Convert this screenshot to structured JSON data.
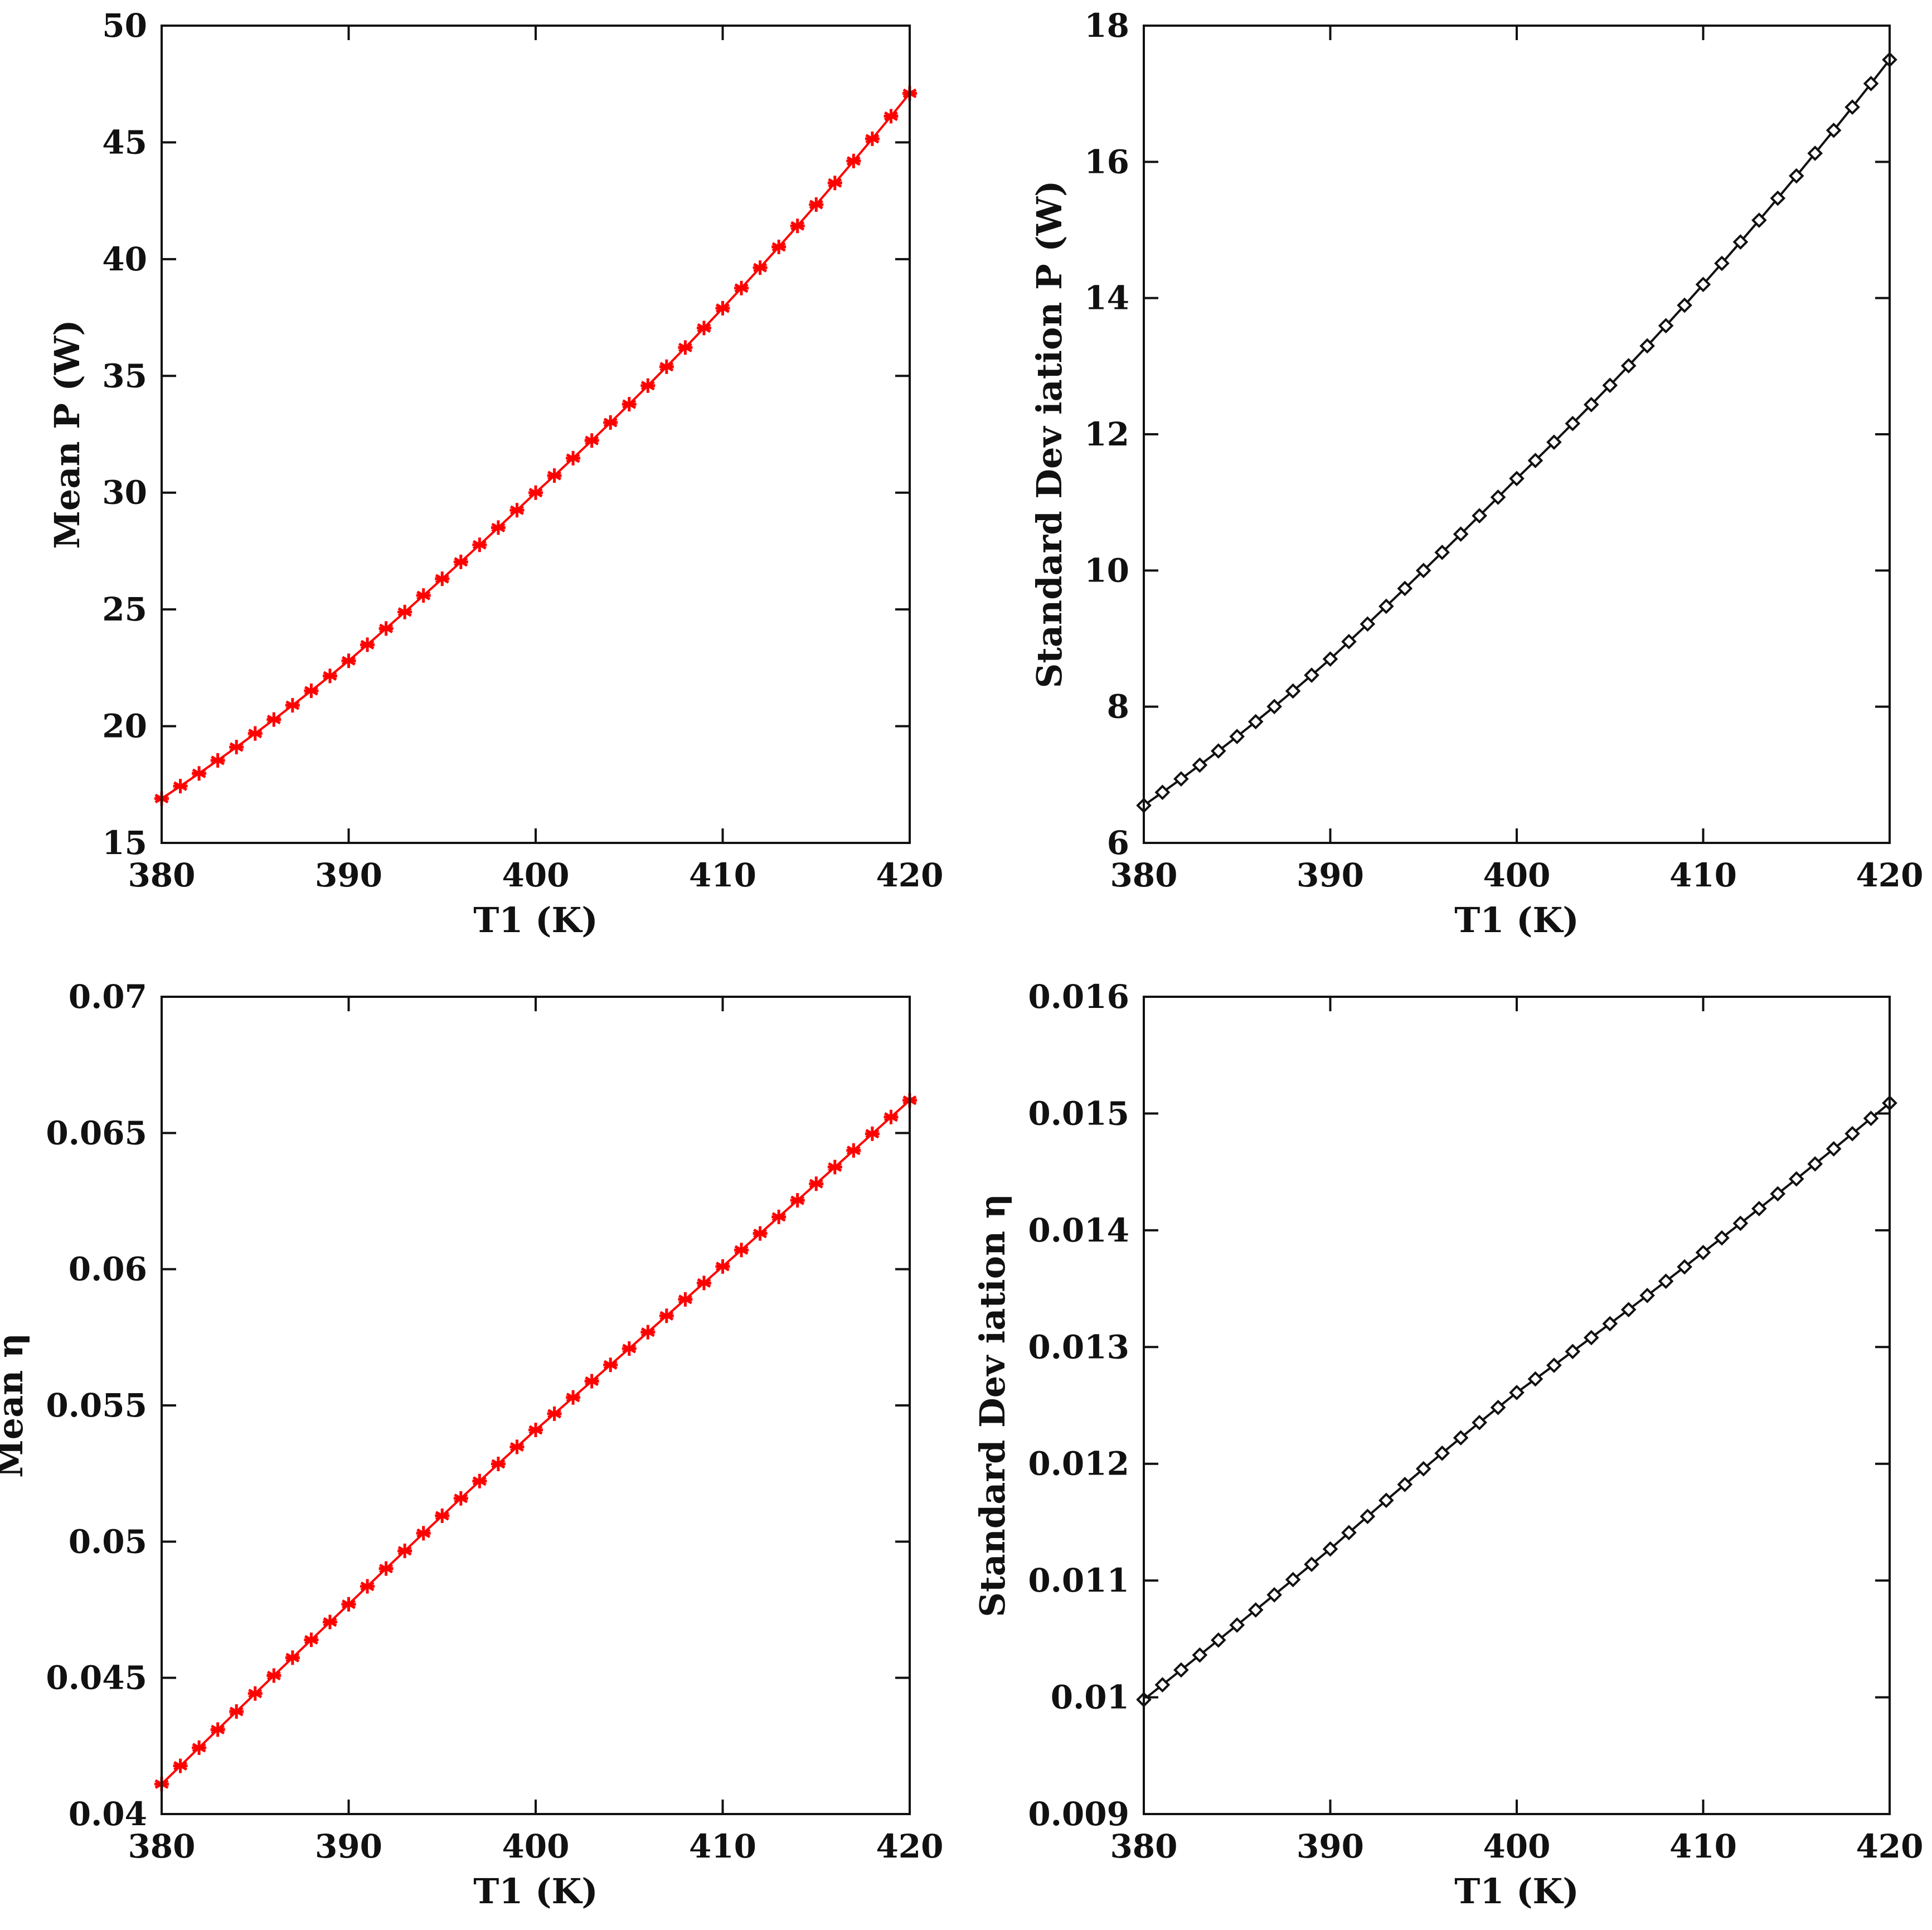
{
  "chart_data": [
    {
      "type": "line",
      "xlabel": "T1 (K)",
      "ylabel": "Mean P (W)",
      "xlim": [
        380,
        420
      ],
      "ylim": [
        15,
        50
      ],
      "xticks": [
        380,
        390,
        400,
        410,
        420
      ],
      "yticks": [
        15,
        20,
        25,
        30,
        35,
        40,
        45,
        50
      ],
      "marker": "asterisk",
      "color": "#ff0000",
      "grid": false,
      "n_points": 41,
      "anchors": [
        [
          380,
          16.9
        ],
        [
          390,
          22.8
        ],
        [
          400,
          30.0
        ],
        [
          410,
          37.9
        ],
        [
          420,
          47.1
        ]
      ]
    },
    {
      "type": "line",
      "xlabel": "T1 (K)",
      "ylabel": "Standard Dev iation P (W)",
      "xlim": [
        380,
        420
      ],
      "ylim": [
        6,
        18
      ],
      "xticks": [
        380,
        390,
        400,
        410,
        420
      ],
      "yticks": [
        6,
        8,
        10,
        12,
        14,
        16,
        18
      ],
      "marker": "diamond",
      "color": "#111111",
      "grid": false,
      "n_points": 41,
      "anchors": [
        [
          380,
          6.55
        ],
        [
          390,
          8.7
        ],
        [
          400,
          11.35
        ],
        [
          410,
          14.2
        ],
        [
          420,
          17.5
        ]
      ]
    },
    {
      "type": "line",
      "xlabel": "T1 (K)",
      "ylabel": "Mean η",
      "xlim": [
        380,
        420
      ],
      "ylim": [
        0.04,
        0.07
      ],
      "xticks": [
        380,
        390,
        400,
        410,
        420
      ],
      "yticks": [
        0.04,
        0.045,
        0.05,
        0.055,
        0.06,
        0.065,
        0.07
      ],
      "marker": "asterisk",
      "color": "#ff0000",
      "grid": false,
      "n_points": 41,
      "anchors": [
        [
          380,
          0.0411
        ],
        [
          390,
          0.0477
        ],
        [
          400,
          0.0541
        ],
        [
          410,
          0.0601
        ],
        [
          420,
          0.0662
        ]
      ]
    },
    {
      "type": "line",
      "xlabel": "T1 (K)",
      "ylabel": "Standard Dev iation η",
      "xlim": [
        380,
        420
      ],
      "ylim": [
        0.009,
        0.016
      ],
      "xticks": [
        380,
        390,
        400,
        410,
        420
      ],
      "yticks": [
        0.009,
        0.01,
        0.011,
        0.012,
        0.013,
        0.014,
        0.015,
        0.016
      ],
      "marker": "diamond",
      "color": "#111111",
      "grid": false,
      "n_points": 41,
      "anchors": [
        [
          380,
          0.00998
        ],
        [
          390,
          0.01127
        ],
        [
          400,
          0.01261
        ],
        [
          410,
          0.01381
        ],
        [
          420,
          0.01509
        ]
      ]
    }
  ]
}
